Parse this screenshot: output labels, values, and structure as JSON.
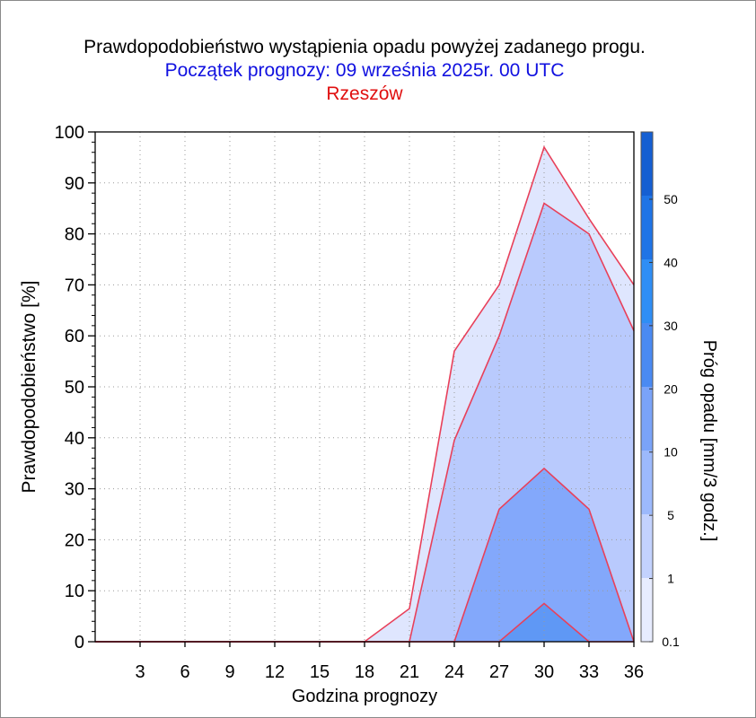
{
  "title": "Prawdopodobieństwo wystąpienia opadu powyżej zadanego progu.",
  "subtitle": "Początek prognozy: 09 września 2025r. 00 UTC",
  "location": "Rzeszów",
  "chart_data": {
    "type": "area",
    "xlabel": "Godzina prognozy",
    "ylabel": "Prawdopodobieństwo [%]",
    "colorbar_label": "Próg opadu [mm/3 godz.]",
    "xlim": [
      0,
      36
    ],
    "ylim": [
      0,
      100
    ],
    "x_ticks": [
      3,
      6,
      9,
      12,
      15,
      18,
      21,
      24,
      27,
      30,
      33,
      36
    ],
    "y_ticks": [
      0,
      10,
      20,
      30,
      40,
      50,
      60,
      70,
      80,
      90,
      100
    ],
    "grid": true,
    "x": [
      0,
      3,
      6,
      9,
      12,
      15,
      18,
      21,
      24,
      27,
      30,
      33,
      36
    ],
    "series": [
      {
        "name": "0.1",
        "color": "#dfe6fe",
        "values": [
          0,
          0,
          0,
          0,
          0,
          0,
          0,
          6.5,
          57,
          70,
          97,
          83,
          70
        ]
      },
      {
        "name": "1",
        "color": "#b9cafd",
        "values": [
          0,
          0,
          0,
          0,
          0,
          0,
          0,
          0,
          39.5,
          60,
          86,
          80,
          61
        ]
      },
      {
        "name": "5",
        "color": "#83a8fb",
        "values": [
          0,
          0,
          0,
          0,
          0,
          0,
          0,
          0,
          0,
          26,
          34,
          26,
          0
        ]
      },
      {
        "name": "10",
        "color": "#5f98f5",
        "values": [
          0,
          0,
          0,
          0,
          0,
          0,
          0,
          0,
          0,
          0,
          7.5,
          0,
          0
        ]
      }
    ],
    "line_color": "#e8405a",
    "colorbar": {
      "ticks": [
        "0.1",
        "1",
        "5",
        "10",
        "20",
        "30",
        "40",
        "50"
      ],
      "colors": [
        "#e7ecff",
        "#c3d2fe",
        "#9cb9fc",
        "#7aa3f8",
        "#4a8af2",
        "#2f8ef5",
        "#1f74e6",
        "#155fd2",
        "#0a47b8"
      ]
    }
  }
}
